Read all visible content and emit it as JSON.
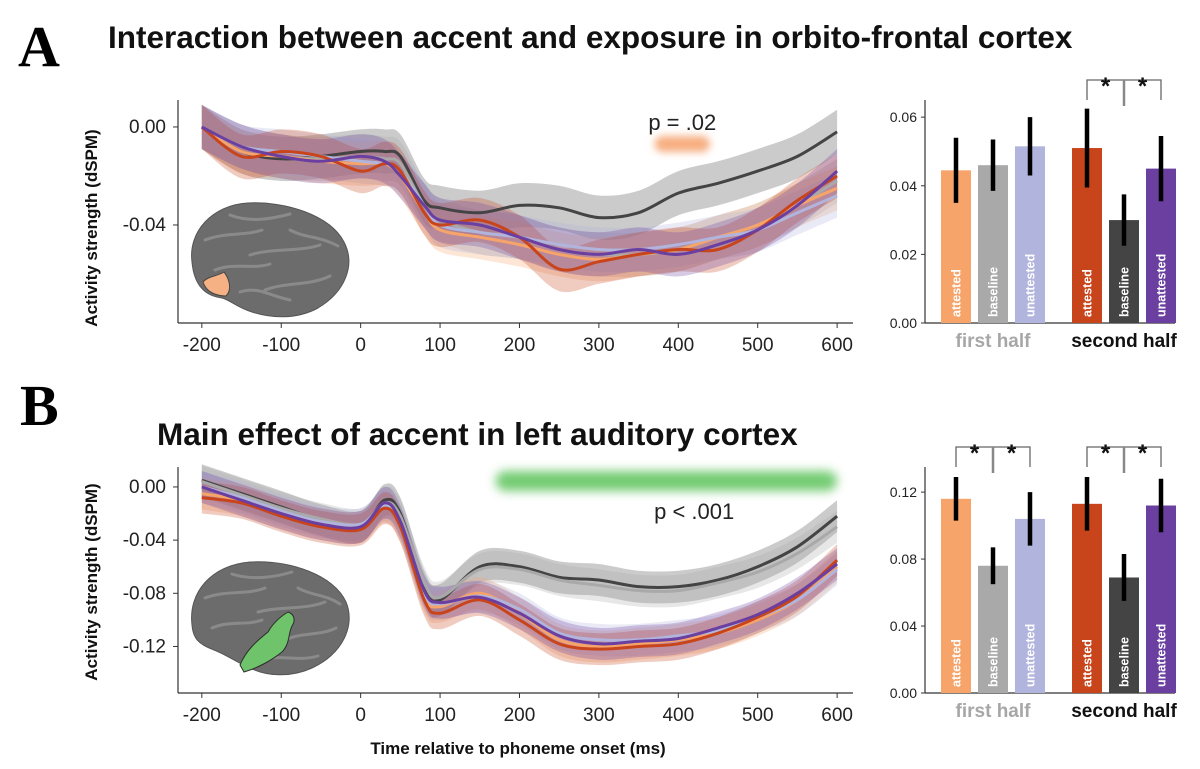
{
  "colors": {
    "attested_first": "#f7a46b",
    "baseline_first": "#a9a9a9",
    "unattested_first": "#b1b4dc",
    "attested_second": "#c8451c",
    "baseline_second": "#444444",
    "unattested_second": "#6a3fa0",
    "roi_a": "#f5b083",
    "roi_b": "#6fc36a",
    "sig_a": "#f5a06a",
    "sig_b": "#5cc35a",
    "brain": "#6c6c6c",
    "first_half_label": "#a7a7a7",
    "second_half_label": "#111111"
  },
  "chart_data": [
    {
      "panel": "A",
      "type": "line",
      "title": "Interaction between accent and exposure in orbito-frontal cortex",
      "ylabel": "Activity strength (dSPM)",
      "xlabel": "",
      "xlim": [
        -230,
        620
      ],
      "ylim": [
        -0.08,
        0.011
      ],
      "xticks": [
        "-200",
        "-100",
        "0",
        "100",
        "200",
        "300",
        "400",
        "500",
        "600"
      ],
      "yticks": [
        "0.00",
        "-0.04"
      ],
      "annotation": "p = .02",
      "sig_window": [
        370,
        440
      ],
      "series": [
        {
          "key": "baseline_second",
          "x": [
            -200,
            -150,
            -100,
            -50,
            0,
            30,
            50,
            80,
            100,
            150,
            200,
            250,
            300,
            350,
            400,
            450,
            500,
            550,
            600
          ],
          "y": [
            0.0,
            -0.01,
            -0.013,
            -0.012,
            -0.01,
            -0.01,
            -0.012,
            -0.03,
            -0.033,
            -0.035,
            -0.032,
            -0.033,
            -0.037,
            -0.035,
            -0.027,
            -0.023,
            -0.018,
            -0.012,
            -0.002
          ]
        },
        {
          "key": "baseline_first",
          "x": [
            -200,
            -150,
            -100,
            -50,
            0,
            30,
            50,
            80,
            100,
            150,
            200,
            250,
            300,
            350,
            400,
            450,
            500,
            550,
            600
          ],
          "y": [
            0.0,
            -0.008,
            -0.012,
            -0.013,
            -0.012,
            -0.013,
            -0.015,
            -0.032,
            -0.038,
            -0.043,
            -0.045,
            -0.05,
            -0.052,
            -0.052,
            -0.05,
            -0.045,
            -0.04,
            -0.032,
            -0.022
          ]
        },
        {
          "key": "attested_first",
          "x": [
            -200,
            -150,
            -100,
            -50,
            0,
            30,
            50,
            80,
            100,
            150,
            200,
            250,
            300,
            350,
            400,
            450,
            500,
            550,
            600
          ],
          "y": [
            0.0,
            -0.01,
            -0.012,
            -0.014,
            -0.015,
            -0.015,
            -0.02,
            -0.035,
            -0.042,
            -0.045,
            -0.048,
            -0.052,
            -0.054,
            -0.052,
            -0.05,
            -0.045,
            -0.04,
            -0.032,
            -0.025
          ]
        },
        {
          "key": "unattested_first",
          "x": [
            -200,
            -150,
            -100,
            -50,
            0,
            30,
            50,
            80,
            100,
            150,
            200,
            250,
            300,
            350,
            400,
            450,
            500,
            550,
            600
          ],
          "y": [
            0.0,
            -0.008,
            -0.01,
            -0.012,
            -0.014,
            -0.015,
            -0.018,
            -0.032,
            -0.04,
            -0.043,
            -0.045,
            -0.048,
            -0.05,
            -0.05,
            -0.048,
            -0.045,
            -0.042,
            -0.035,
            -0.028
          ]
        },
        {
          "key": "attested_second",
          "x": [
            -200,
            -150,
            -100,
            -50,
            0,
            30,
            50,
            80,
            100,
            150,
            200,
            250,
            300,
            350,
            400,
            450,
            500,
            550,
            600
          ],
          "y": [
            0.0,
            -0.012,
            -0.01,
            -0.012,
            -0.018,
            -0.015,
            -0.018,
            -0.035,
            -0.04,
            -0.038,
            -0.045,
            -0.058,
            -0.055,
            -0.052,
            -0.05,
            -0.05,
            -0.042,
            -0.03,
            -0.02
          ]
        },
        {
          "key": "unattested_second",
          "x": [
            -200,
            -150,
            -100,
            -50,
            0,
            30,
            50,
            80,
            100,
            150,
            200,
            250,
            300,
            350,
            400,
            450,
            500,
            550,
            600
          ],
          "y": [
            0.0,
            -0.008,
            -0.012,
            -0.014,
            -0.012,
            -0.014,
            -0.02,
            -0.032,
            -0.038,
            -0.04,
            -0.045,
            -0.05,
            -0.052,
            -0.05,
            -0.052,
            -0.048,
            -0.042,
            -0.032,
            -0.018
          ]
        }
      ]
    },
    {
      "panel": "A-bars",
      "type": "bar",
      "ylim": [
        0,
        0.065
      ],
      "yticks": [
        "0.00",
        "0.02",
        "0.04",
        "0.06"
      ],
      "groups": [
        "first half",
        "second half"
      ],
      "bars": [
        {
          "label": "attested",
          "value": 0.0445,
          "err": 0.0095,
          "group": 0,
          "key": "attested_first"
        },
        {
          "label": "baseline",
          "value": 0.046,
          "err": 0.0075,
          "group": 0,
          "key": "baseline_first"
        },
        {
          "label": "unattested",
          "value": 0.0515,
          "err": 0.0085,
          "group": 0,
          "key": "unattested_first"
        },
        {
          "label": "attested",
          "value": 0.051,
          "err": 0.0115,
          "group": 1,
          "key": "attested_second"
        },
        {
          "label": "baseline",
          "value": 0.03,
          "err": 0.0075,
          "group": 1,
          "key": "baseline_second"
        },
        {
          "label": "unattested",
          "value": 0.045,
          "err": 0.0095,
          "group": 1,
          "key": "unattested_second"
        }
      ],
      "sig_marker": "*",
      "sig_groups": [
        1
      ]
    },
    {
      "panel": "B",
      "type": "line",
      "title": "Main effect of accent in left auditory cortex",
      "ylabel": "Activity strength (dSPM)",
      "xlabel": "Time relative to phoneme onset (ms)",
      "xlim": [
        -230,
        620
      ],
      "ylim": [
        -0.155,
        0.015
      ],
      "xticks": [
        "-200",
        "-100",
        "0",
        "100",
        "200",
        "300",
        "400",
        "500",
        "600"
      ],
      "yticks": [
        "0.00",
        "-0.04",
        "-0.08",
        "-0.12"
      ],
      "annotation": "p < .001",
      "sig_window": [
        170,
        600
      ],
      "series": [
        {
          "key": "baseline_second",
          "x": [
            -200,
            -150,
            -100,
            -50,
            0,
            30,
            50,
            80,
            100,
            150,
            200,
            250,
            300,
            350,
            400,
            450,
            500,
            550,
            600
          ],
          "y": [
            0.005,
            -0.005,
            -0.015,
            -0.025,
            -0.03,
            -0.01,
            -0.02,
            -0.075,
            -0.085,
            -0.06,
            -0.06,
            -0.068,
            -0.07,
            -0.075,
            -0.075,
            -0.07,
            -0.06,
            -0.045,
            -0.022
          ]
        },
        {
          "key": "baseline_first",
          "x": [
            -200,
            -150,
            -100,
            -50,
            0,
            30,
            50,
            80,
            100,
            150,
            200,
            250,
            300,
            350,
            400,
            450,
            500,
            550,
            600
          ],
          "y": [
            0.004,
            -0.006,
            -0.016,
            -0.024,
            -0.028,
            -0.012,
            -0.022,
            -0.072,
            -0.083,
            -0.062,
            -0.062,
            -0.07,
            -0.074,
            -0.078,
            -0.078,
            -0.072,
            -0.064,
            -0.05,
            -0.03
          ]
        },
        {
          "key": "attested_first",
          "x": [
            -200,
            -150,
            -100,
            -50,
            0,
            30,
            50,
            80,
            100,
            150,
            200,
            250,
            300,
            350,
            400,
            450,
            500,
            550,
            600
          ],
          "y": [
            -0.005,
            -0.01,
            -0.02,
            -0.028,
            -0.03,
            -0.015,
            -0.03,
            -0.082,
            -0.09,
            -0.08,
            -0.095,
            -0.115,
            -0.12,
            -0.118,
            -0.115,
            -0.11,
            -0.1,
            -0.085,
            -0.06
          ]
        },
        {
          "key": "unattested_first",
          "x": [
            -200,
            -150,
            -100,
            -50,
            0,
            30,
            50,
            80,
            100,
            150,
            200,
            250,
            300,
            350,
            400,
            450,
            500,
            550,
            600
          ],
          "y": [
            0.0,
            -0.008,
            -0.018,
            -0.026,
            -0.028,
            -0.014,
            -0.028,
            -0.08,
            -0.088,
            -0.082,
            -0.092,
            -0.11,
            -0.115,
            -0.115,
            -0.112,
            -0.108,
            -0.098,
            -0.085,
            -0.062
          ]
        },
        {
          "key": "attested_second",
          "x": [
            -200,
            -150,
            -100,
            -50,
            0,
            30,
            50,
            80,
            100,
            150,
            200,
            250,
            300,
            350,
            400,
            450,
            500,
            550,
            600
          ],
          "y": [
            -0.008,
            -0.012,
            -0.022,
            -0.03,
            -0.032,
            -0.016,
            -0.03,
            -0.085,
            -0.095,
            -0.085,
            -0.1,
            -0.118,
            -0.122,
            -0.12,
            -0.118,
            -0.11,
            -0.098,
            -0.082,
            -0.055
          ]
        },
        {
          "key": "unattested_second",
          "x": [
            -200,
            -150,
            -100,
            -50,
            0,
            30,
            50,
            80,
            100,
            150,
            200,
            250,
            300,
            350,
            400,
            450,
            500,
            550,
            600
          ],
          "y": [
            0.0,
            -0.01,
            -0.02,
            -0.028,
            -0.03,
            -0.012,
            -0.026,
            -0.078,
            -0.087,
            -0.083,
            -0.095,
            -0.112,
            -0.118,
            -0.116,
            -0.114,
            -0.106,
            -0.096,
            -0.08,
            -0.058
          ]
        }
      ]
    },
    {
      "panel": "B-bars",
      "type": "bar",
      "ylim": [
        0,
        0.135
      ],
      "yticks": [
        "0.00",
        "0.04",
        "0.08",
        "0.12"
      ],
      "groups": [
        "first half",
        "second half"
      ],
      "bars": [
        {
          "label": "attested",
          "value": 0.116,
          "err": 0.013,
          "group": 0,
          "key": "attested_first"
        },
        {
          "label": "baseline",
          "value": 0.076,
          "err": 0.011,
          "group": 0,
          "key": "baseline_first"
        },
        {
          "label": "unattested",
          "value": 0.104,
          "err": 0.016,
          "group": 0,
          "key": "unattested_first"
        },
        {
          "label": "attested",
          "value": 0.113,
          "err": 0.016,
          "group": 1,
          "key": "attested_second"
        },
        {
          "label": "baseline",
          "value": 0.069,
          "err": 0.014,
          "group": 1,
          "key": "baseline_second"
        },
        {
          "label": "unattested",
          "value": 0.112,
          "err": 0.016,
          "group": 1,
          "key": "unattested_second"
        }
      ],
      "sig_marker": "*",
      "sig_groups": [
        0,
        1
      ]
    }
  ],
  "panel_labels": [
    "A",
    "B"
  ]
}
